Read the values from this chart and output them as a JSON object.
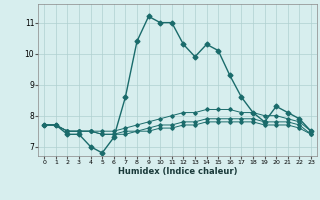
{
  "xlabel": "Humidex (Indice chaleur)",
  "background_color": "#d7eeee",
  "grid_color": "#b0d0d0",
  "line_color": "#1a6b6b",
  "xlim": [
    -0.5,
    23.5
  ],
  "ylim": [
    6.7,
    11.6
  ],
  "yticks": [
    7,
    8,
    9,
    10,
    11
  ],
  "xticks": [
    0,
    1,
    2,
    3,
    4,
    5,
    6,
    7,
    8,
    9,
    10,
    11,
    12,
    13,
    14,
    15,
    16,
    17,
    18,
    19,
    20,
    21,
    22,
    23
  ],
  "series": [
    {
      "x": [
        0,
        1,
        2,
        3,
        4,
        5,
        6,
        7,
        8,
        9,
        10,
        11,
        12,
        13,
        14,
        15,
        16,
        17,
        18,
        19,
        20,
        21,
        22,
        23
      ],
      "y": [
        7.7,
        7.7,
        7.4,
        7.4,
        7.0,
        6.8,
        7.3,
        8.6,
        10.4,
        11.2,
        11.0,
        11.0,
        10.3,
        9.9,
        10.3,
        10.1,
        9.3,
        8.6,
        8.1,
        7.8,
        8.3,
        8.1,
        7.9,
        7.5
      ],
      "marker": "D",
      "markersize": 2.5,
      "lw": 1.0
    },
    {
      "x": [
        0,
        1,
        2,
        3,
        4,
        5,
        6,
        7,
        8,
        9,
        10,
        11,
        12,
        13,
        14,
        15,
        16,
        17,
        18,
        19,
        20,
        21,
        22,
        23
      ],
      "y": [
        7.7,
        7.7,
        7.5,
        7.5,
        7.5,
        7.5,
        7.5,
        7.6,
        7.7,
        7.8,
        7.9,
        8.0,
        8.1,
        8.1,
        8.2,
        8.2,
        8.2,
        8.1,
        8.1,
        8.0,
        8.0,
        7.9,
        7.8,
        7.5
      ],
      "marker": "D",
      "markersize": 1.8,
      "lw": 0.7
    },
    {
      "x": [
        0,
        1,
        2,
        3,
        4,
        5,
        6,
        7,
        8,
        9,
        10,
        11,
        12,
        13,
        14,
        15,
        16,
        17,
        18,
        19,
        20,
        21,
        22,
        23
      ],
      "y": [
        7.7,
        7.7,
        7.5,
        7.5,
        7.5,
        7.4,
        7.4,
        7.5,
        7.5,
        7.6,
        7.7,
        7.7,
        7.8,
        7.8,
        7.9,
        7.9,
        7.9,
        7.9,
        7.9,
        7.8,
        7.8,
        7.8,
        7.7,
        7.4
      ],
      "marker": "D",
      "markersize": 1.8,
      "lw": 0.7
    },
    {
      "x": [
        0,
        1,
        2,
        3,
        4,
        5,
        6,
        7,
        8,
        9,
        10,
        11,
        12,
        13,
        14,
        15,
        16,
        17,
        18,
        19,
        20,
        21,
        22,
        23
      ],
      "y": [
        7.7,
        7.7,
        7.5,
        7.5,
        7.5,
        7.4,
        7.4,
        7.4,
        7.5,
        7.5,
        7.6,
        7.6,
        7.7,
        7.7,
        7.8,
        7.8,
        7.8,
        7.8,
        7.8,
        7.7,
        7.7,
        7.7,
        7.6,
        7.4
      ],
      "marker": "D",
      "markersize": 1.8,
      "lw": 0.7
    }
  ]
}
